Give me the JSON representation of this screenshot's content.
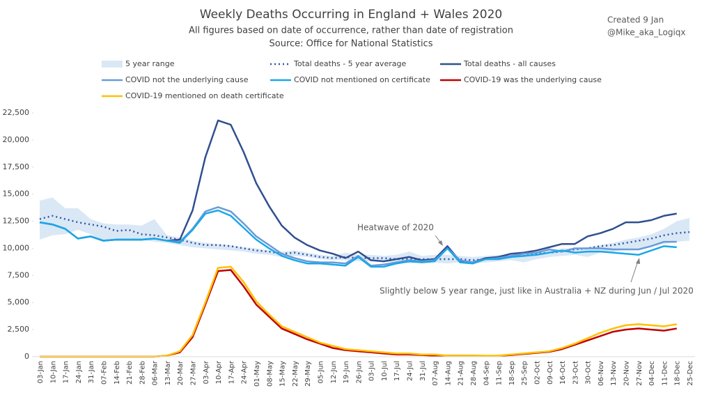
{
  "chart_data": {
    "type": "line",
    "title": "Weekly Deaths Occurring in England + Wales 2020",
    "subtitle": [
      "All figures based on date of occurrence, rather than date of registration",
      "Source: Office for National Statistics"
    ],
    "notes": [
      "Created 9 Jan",
      "@Mike_aka_Logiqx"
    ],
    "annotations": [
      "Heatwave of 2020",
      "Slightly below 5 year range, just like in Australia + NZ during Jun / Jul 2020"
    ],
    "categories": [
      "03-Jan",
      "10-Jan",
      "17-Jan",
      "24-Jan",
      "31-Jan",
      "07-Feb",
      "14-Feb",
      "21-Feb",
      "28-Feb",
      "06-Mar",
      "13-Mar",
      "20-Mar",
      "27-Mar",
      "03-Apr",
      "10-Apr",
      "17-Apr",
      "24-Apr",
      "01-May",
      "08-May",
      "15-May",
      "22-May",
      "29-May",
      "05-Jun",
      "12-Jun",
      "19-Jun",
      "26-Jun",
      "03-Jul",
      "10-Jul",
      "17-Jul",
      "24-Jul",
      "31-Jul",
      "07-Aug",
      "14-Aug",
      "21-Aug",
      "28-Aug",
      "04-Sep",
      "11-Sep",
      "18-Sep",
      "25-Sep",
      "02-Oct",
      "09-Oct",
      "16-Oct",
      "23-Oct",
      "30-Oct",
      "06-Nov",
      "13-Nov",
      "20-Nov",
      "27-Nov",
      "04-Dec",
      "11-Dec",
      "18-Dec",
      "25-Dec"
    ],
    "ylim": [
      0,
      22500
    ],
    "yticks": [
      0,
      {
        "value": 2500,
        "label": "2,500"
      },
      {
        "value": 5000,
        "label": "5,000"
      },
      {
        "value": 7500,
        "label": "7,500"
      },
      {
        "value": 10000,
        "label": "10,000"
      },
      {
        "value": 12500,
        "label": "12,500"
      },
      {
        "value": 15000,
        "label": "15,000"
      },
      {
        "value": 17500,
        "label": "17,500"
      },
      {
        "value": 20000,
        "label": "20,000"
      },
      {
        "value": 22500,
        "label": "22,500"
      }
    ],
    "grid": false,
    "legend": "top",
    "series": [
      {
        "name": "5 year range",
        "color": "#dae8f6",
        "style": "range",
        "high": [
          14400,
          14700,
          13700,
          13700,
          12700,
          12300,
          12200,
          12200,
          12100,
          12700,
          11200,
          11000,
          10700,
          10500,
          10400,
          10300,
          10100,
          10000,
          9800,
          9700,
          9800,
          9600,
          9400,
          9300,
          9600,
          9400,
          9400,
          9300,
          9400,
          9700,
          9300,
          9400,
          9400,
          9300,
          9200,
          9300,
          9400,
          9400,
          9600,
          9700,
          9800,
          10000,
          10000,
          10100,
          10300,
          10500,
          10800,
          11000,
          11300,
          11800,
          12500,
          12800
        ],
        "low": [
          10800,
          11200,
          11300,
          11700,
          11300,
          10700,
          10900,
          10700,
          10800,
          10600,
          10500,
          10300,
          10100,
          10000,
          9900,
          9800,
          9700,
          9500,
          9400,
          9200,
          9300,
          9200,
          9000,
          8900,
          8900,
          8800,
          8800,
          8800,
          8700,
          8600,
          8700,
          8700,
          8600,
          8700,
          8600,
          8700,
          8800,
          8900,
          8700,
          9000,
          9200,
          9300,
          9400,
          9200,
          9600,
          9700,
          9900,
          10000,
          10200,
          10400,
          10600,
          10700
        ]
      },
      {
        "name": "Total deaths - 5 year average",
        "color": "#2f55a4",
        "style": "dotted",
        "values": [
          12700,
          13000,
          12700,
          12400,
          12200,
          12000,
          11600,
          11700,
          11300,
          11200,
          11000,
          10800,
          10500,
          10300,
          10300,
          10200,
          10000,
          9800,
          9700,
          9500,
          9600,
          9400,
          9200,
          9100,
          9200,
          9100,
          9100,
          9100,
          9000,
          9000,
          9000,
          9000,
          9000,
          9000,
          8900,
          9000,
          9100,
          9200,
          9300,
          9500,
          9600,
          9700,
          9900,
          10000,
          10200,
          10300,
          10500,
          10700,
          10900,
          11200,
          11400,
          11500
        ]
      },
      {
        "name": "Total deaths - all causes",
        "color": "#2f4f8f",
        "style": "solid",
        "values": [
          12400,
          12200,
          11800,
          10900,
          11100,
          10700,
          10800,
          10800,
          10800,
          10900,
          10700,
          10800,
          13500,
          18400,
          21800,
          21400,
          18900,
          16000,
          13900,
          12100,
          11000,
          10300,
          9800,
          9500,
          9100,
          9700,
          8900,
          8800,
          9000,
          9200,
          8900,
          9000,
          10200,
          8800,
          8700,
          9100,
          9200,
          9500,
          9600,
          9800,
          10100,
          10400,
          10400,
          11100,
          11400,
          11800,
          12400,
          12400,
          12600,
          13000,
          13200,
          null
        ]
      },
      {
        "name": "COVID not the underlying cause",
        "color": "#6a9bd8",
        "style": "solid",
        "values": [
          12400,
          12200,
          11800,
          10900,
          11100,
          10700,
          10800,
          10800,
          10800,
          10900,
          10700,
          10600,
          11800,
          13400,
          13800,
          13400,
          12300,
          11100,
          10300,
          9500,
          9100,
          8800,
          8700,
          8700,
          8600,
          9300,
          8400,
          8500,
          8700,
          8900,
          8800,
          8900,
          10000,
          8900,
          8700,
          9000,
          9100,
          9300,
          9500,
          9600,
          9900,
          9700,
          10000,
          10000,
          10000,
          9900,
          9900,
          9900,
          10200,
          10600,
          10600,
          null
        ]
      },
      {
        "name": "COVID not mentioned on certificate",
        "color": "#1aa7e8",
        "style": "solid",
        "values": [
          12400,
          12200,
          11800,
          10900,
          11100,
          10700,
          10800,
          10800,
          10800,
          10900,
          10700,
          10500,
          11700,
          13200,
          13500,
          13000,
          11900,
          10800,
          10000,
          9300,
          8900,
          8600,
          8600,
          8500,
          8400,
          9200,
          8300,
          8300,
          8600,
          8800,
          8700,
          8800,
          10000,
          8700,
          8600,
          9000,
          9000,
          9200,
          9300,
          9400,
          9600,
          9800,
          9600,
          9700,
          9700,
          9600,
          9500,
          9400,
          9800,
          10200,
          10100,
          null
        ]
      },
      {
        "name": "COVID-19 was the underlying cause",
        "color": "#c00000",
        "style": "solid",
        "values": [
          0,
          0,
          0,
          0,
          0,
          0,
          0,
          0,
          0,
          0,
          100,
          400,
          1800,
          4800,
          7900,
          8000,
          6500,
          4800,
          3700,
          2600,
          2100,
          1600,
          1200,
          800,
          600,
          500,
          400,
          300,
          200,
          200,
          150,
          100,
          100,
          100,
          100,
          80,
          80,
          150,
          250,
          350,
          450,
          700,
          1100,
          1500,
          1900,
          2300,
          2500,
          2600,
          2500,
          2400,
          2600,
          null
        ]
      },
      {
        "name": "COVID-19 mentioned on death certificate",
        "color": "#ffc000",
        "style": "solid",
        "values": [
          0,
          0,
          0,
          0,
          0,
          0,
          0,
          0,
          0,
          0,
          100,
          500,
          2000,
          5000,
          8200,
          8300,
          6900,
          5100,
          3900,
          2800,
          2300,
          1800,
          1300,
          1000,
          700,
          600,
          500,
          400,
          300,
          300,
          200,
          200,
          100,
          100,
          100,
          100,
          100,
          200,
          300,
          400,
          500,
          800,
          1200,
          1700,
          2200,
          2600,
          2900,
          3000,
          2900,
          2800,
          3000,
          null
        ]
      }
    ]
  }
}
